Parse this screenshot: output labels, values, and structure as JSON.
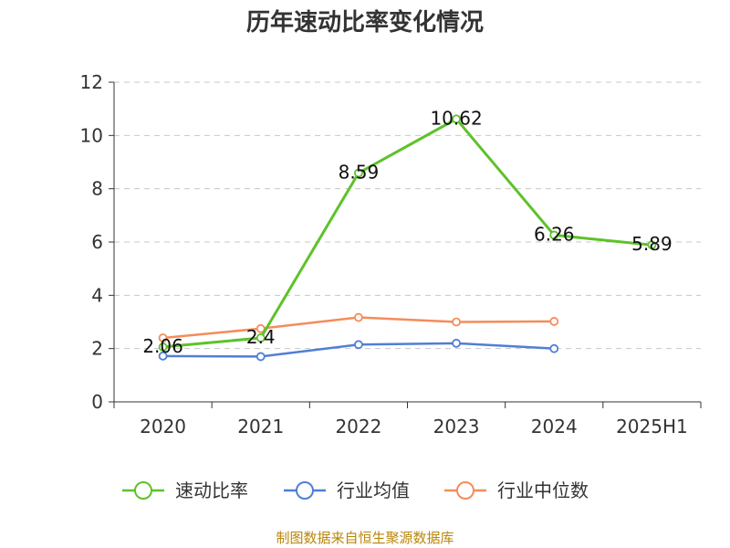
{
  "chart_data": {
    "type": "line",
    "title": "历年速动比率变化情况",
    "categories": [
      "2020",
      "2021",
      "2022",
      "2023",
      "2024",
      "2025H1"
    ],
    "ylim": [
      0,
      12
    ],
    "yticks": [
      0,
      2,
      4,
      6,
      8,
      10,
      12
    ],
    "grid": true,
    "legend_placement": "bottom",
    "series": [
      {
        "name": "速动比率",
        "color": "#5dc22a",
        "values": [
          2.06,
          2.4,
          8.59,
          10.62,
          6.26,
          5.89
        ],
        "labels": [
          "2.06",
          "2.4",
          "8.59",
          "10.62",
          "6.26",
          "5.89"
        ]
      },
      {
        "name": "行业均值",
        "color": "#4f7fd6",
        "values": [
          1.72,
          1.7,
          2.15,
          2.2,
          2.0,
          null
        ]
      },
      {
        "name": "行业中位数",
        "color": "#f58c5a",
        "values": [
          2.4,
          2.75,
          3.17,
          3.0,
          3.02,
          null
        ]
      }
    ]
  },
  "source_text": "制图数据来自恒生聚源数据库"
}
